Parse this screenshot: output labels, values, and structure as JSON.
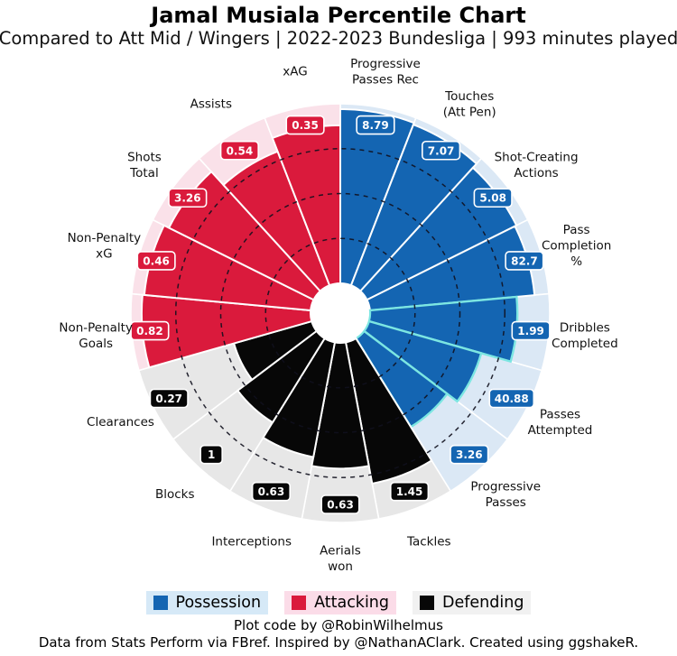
{
  "title": "Jamal Musiala Percentile Chart",
  "subtitle": "Compared to Att Mid / Wingers | 2022-2023 Bundesliga | 993 minutes played",
  "legend": [
    {
      "label": "Possession",
      "color": "#1465b2",
      "halo": "#d6e9f7"
    },
    {
      "label": "Attacking",
      "color": "#da1a3c",
      "halo": "#fbdce8"
    },
    {
      "label": "Defending",
      "color": "#070707",
      "halo": "#f1f1f1"
    }
  ],
  "footer": {
    "credit": "Plot code by @RobinWilhelmus",
    "source": "Data from Stats Perform via FBref. Inspired by @NathanAClark. Created using ggshakeR."
  },
  "chart_data": {
    "type": "pizza-percentile",
    "scale": [
      0,
      100
    ],
    "rings": [
      25,
      50,
      75
    ],
    "ring_style": "dashed",
    "start": "12-o-clock, clockwise",
    "accent_stroke": "#7ce6e2",
    "groups": {
      "Possession": {
        "color": "#1465b2",
        "bg": "#dbe8f5"
      },
      "Attacking": {
        "color": "#da1a3c",
        "bg": "#fae1e9"
      },
      "Defending": {
        "color": "#070707",
        "bg": "#e7e7e7"
      }
    },
    "slices": [
      {
        "label": "Progressive Passes Rec",
        "lines": [
          "Progressive",
          "Passes Rec"
        ],
        "group": "Possession",
        "value": "8.79",
        "percentile": 97
      },
      {
        "label": "Touches (Att Pen)",
        "lines": [
          "Touches",
          "(Att Pen)"
        ],
        "group": "Possession",
        "value": "7.07",
        "percentile": 96
      },
      {
        "label": "Shot-Creating Actions",
        "lines": [
          "Shot-Creating",
          "Actions"
        ],
        "group": "Possession",
        "value": "5.08",
        "percentile": 93
      },
      {
        "label": "Pass Completion %",
        "lines": [
          "Pass",
          "Completion",
          "%"
        ],
        "group": "Possession",
        "value": "82.7",
        "percentile": 92
      },
      {
        "label": "Dribbles Completed",
        "lines": [
          "Dribbles",
          "Completed"
        ],
        "group": "Possession",
        "value": "1.99",
        "percentile": 82,
        "accent": true
      },
      {
        "label": "Passes Attempted",
        "lines": [
          "Passes",
          "Attempted"
        ],
        "group": "Possession",
        "value": "40.88",
        "percentile": 65,
        "accent": true
      },
      {
        "label": "Progressive Passes",
        "lines": [
          "Progressive",
          "Passes"
        ],
        "group": "Possession",
        "value": "3.26",
        "percentile": 58,
        "accent": true
      },
      {
        "label": "Tackles",
        "lines": [
          "Tackles"
        ],
        "group": "Defending",
        "value": "1.45",
        "percentile": 80
      },
      {
        "label": "Aerials won",
        "lines": [
          "Aerials",
          "won"
        ],
        "group": "Defending",
        "value": "0.63",
        "percentile": 70
      },
      {
        "label": "Interceptions",
        "lines": [
          "Interceptions"
        ],
        "group": "Defending",
        "value": "0.63",
        "percentile": 65
      },
      {
        "label": "Blocks",
        "lines": [
          "Blocks"
        ],
        "group": "Defending",
        "value": "1",
        "percentile": 55
      },
      {
        "label": "Clearances",
        "lines": [
          "Clearances"
        ],
        "group": "Defending",
        "value": "0.27",
        "percentile": 45
      },
      {
        "label": "Non-Penalty Goals",
        "lines": [
          "Non-Penalty",
          "Goals"
        ],
        "group": "Attacking",
        "value": "0.82",
        "percentile": 94
      },
      {
        "label": "Non-Penalty xG",
        "lines": [
          "Non-Penalty",
          "xG"
        ],
        "group": "Attacking",
        "value": "0.46",
        "percentile": 93
      },
      {
        "label": "Shots Total",
        "lines": [
          "Shots",
          "Total"
        ],
        "group": "Attacking",
        "value": "3.26",
        "percentile": 90
      },
      {
        "label": "Assists",
        "lines": [
          "Assists"
        ],
        "group": "Attacking",
        "value": "0.54",
        "percentile": 80
      },
      {
        "label": "xAG",
        "lines": [
          "xAG"
        ],
        "group": "Attacking",
        "value": "0.35",
        "percentile": 88
      }
    ]
  }
}
